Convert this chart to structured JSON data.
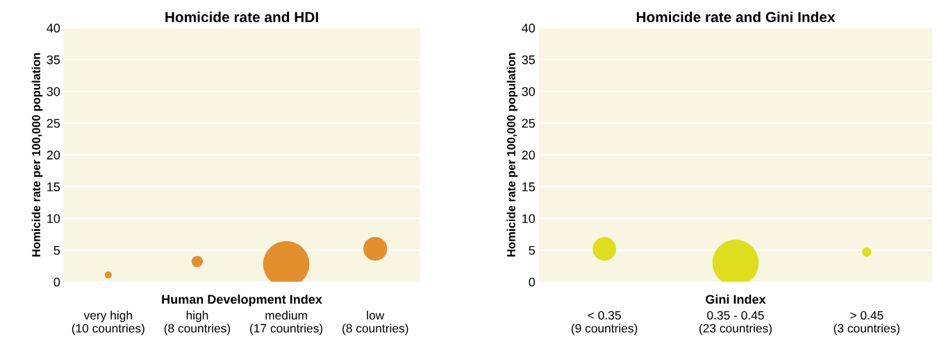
{
  "chart_data": [
    {
      "type": "bubble",
      "title": "Homicide rate and HDI",
      "xlabel": "Human Development Index",
      "ylabel": "Homicide rate per 100,000 population",
      "categories": [
        "very high\n(10 countries)",
        "high\n(8 countries)",
        "medium\n(17 countries)",
        "low\n(8 countries)"
      ],
      "series": [
        {
          "color": "#e38f2e",
          "values": [
            1.1,
            3.2,
            2.8,
            5.2
          ],
          "sizes": [
            0.023,
            0.059,
            1,
            0.265
          ]
        }
      ],
      "ylim": [
        0,
        40
      ],
      "yticks": [
        0,
        5,
        10,
        15,
        20,
        25,
        30,
        35,
        40
      ],
      "grid": "y"
    },
    {
      "type": "bubble",
      "title": "Homicide rate and Gini Index",
      "xlabel": "Gini Index",
      "ylabel": "Homicide rate per 100,000 population",
      "categories": [
        "< 0.35\n(9 countries)",
        "0.35 - 0.45\n(23 countries)",
        "> 0.45\n(3 countries)"
      ],
      "series": [
        {
          "color": "#dede1e",
          "values": [
            5.2,
            3.0,
            4.7
          ],
          "sizes": [
            0.26,
            1,
            0.04
          ]
        }
      ],
      "ylim": [
        0,
        40
      ],
      "yticks": [
        0,
        5,
        10,
        15,
        20,
        25,
        30,
        35,
        40
      ],
      "grid": "y"
    }
  ]
}
